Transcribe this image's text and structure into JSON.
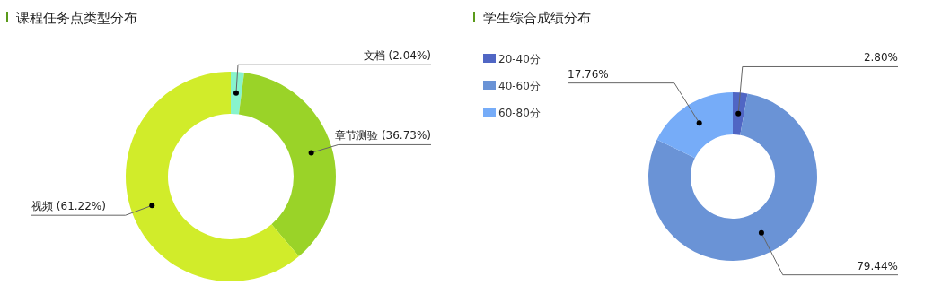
{
  "chart_data": [
    {
      "type": "donut",
      "title": "课程任务点类型分布",
      "categories": [
        "文档",
        "章节测验",
        "视频"
      ],
      "values": [
        2.04,
        36.73,
        61.22
      ],
      "colors": [
        "#88f4cc",
        "#9ad328",
        "#d1ec2a"
      ],
      "value_labels": [
        "(2.04%)",
        "(36.73%)",
        "(61.22%)"
      ],
      "legend": false
    },
    {
      "type": "donut",
      "title": "学生综合成绩分布",
      "categories": [
        "20-40分",
        "40-60分",
        "60-80分"
      ],
      "values": [
        2.8,
        79.44,
        17.76
      ],
      "colors": [
        "#5066c4",
        "#6a93d6",
        "#76acf8"
      ],
      "value_labels": [
        "2.80%",
        "79.44%",
        "17.76%"
      ],
      "legend": "top left"
    }
  ]
}
